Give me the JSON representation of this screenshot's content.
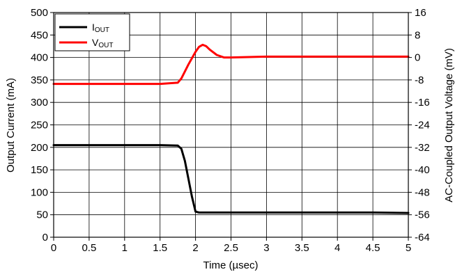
{
  "chart_data": {
    "type": "line",
    "xlabel": "Time (µsec)",
    "ylabel_left": "Output Current (mA)",
    "ylabel_right": "AC-Coupled Output Voltage (mV)",
    "xlim": [
      0,
      5
    ],
    "ylim_left": [
      0,
      500
    ],
    "ylim_right": [
      -64,
      16
    ],
    "x_ticks": [
      "0",
      "0.5",
      "1",
      "1.5",
      "2",
      "2.5",
      "3",
      "3.5",
      "4",
      "4.5",
      "5"
    ],
    "y_ticks_left": [
      "0",
      "50",
      "100",
      "150",
      "200",
      "250",
      "300",
      "350",
      "400",
      "450",
      "500"
    ],
    "y_ticks_right": [
      "-64",
      "-56",
      "-48",
      "-40",
      "-32",
      "-24",
      "-16",
      "-8",
      "0",
      "8",
      "16"
    ],
    "grid": true,
    "legend_position": "top-left",
    "series": [
      {
        "name": "I_OUT",
        "legend_main": "I",
        "legend_sub": "OUT",
        "color": "#000000",
        "axis": "left",
        "x": [
          0,
          0.5,
          1,
          1.5,
          1.75,
          1.8,
          1.85,
          1.9,
          1.95,
          2.0,
          2.05,
          2.1,
          2.2,
          2.5,
          3,
          3.5,
          4,
          4.5,
          5
        ],
        "y": [
          205,
          205,
          205,
          205,
          204,
          197,
          170,
          130,
          90,
          57,
          55,
          55,
          55,
          55,
          55,
          55,
          55,
          55,
          54
        ]
      },
      {
        "name": "V_OUT",
        "legend_main": "V",
        "legend_sub": "OUT",
        "color": "#ff0000",
        "axis": "right",
        "x": [
          0,
          0.5,
          1,
          1.5,
          1.75,
          1.8,
          1.9,
          2.0,
          2.05,
          2.1,
          2.15,
          2.2,
          2.3,
          2.4,
          2.5,
          3,
          3.5,
          4,
          4.5,
          5
        ],
        "y": [
          -9.4,
          -9.4,
          -9.4,
          -9.4,
          -9.0,
          -7.5,
          -2.5,
          2.0,
          3.8,
          4.5,
          4.0,
          2.8,
          0.9,
          0,
          0,
          0.3,
          0.3,
          0.3,
          0.3,
          0.3
        ]
      }
    ]
  }
}
